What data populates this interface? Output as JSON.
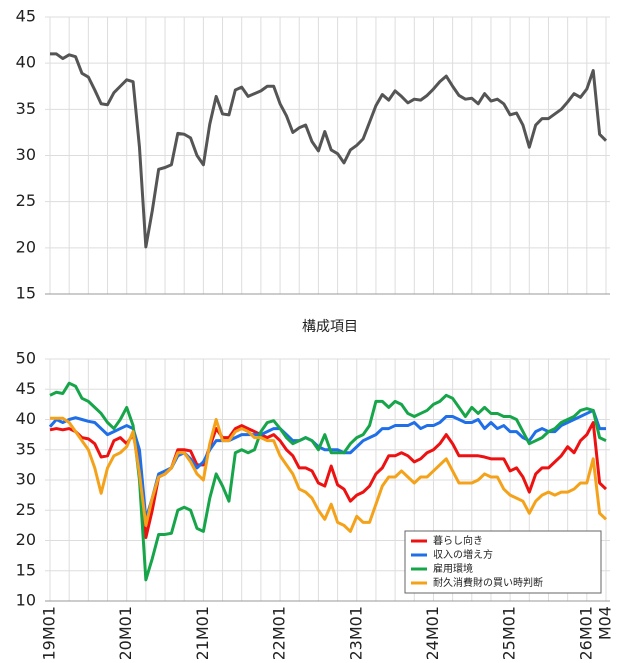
{
  "chart_data": [
    {
      "type": "line",
      "ylim": [
        15,
        45
      ],
      "yticks": [
        15,
        20,
        25,
        30,
        35,
        40,
        45
      ],
      "grid": true,
      "series": [
        {
          "color": "#555555",
          "values": [
            41.0,
            41.0,
            40.5,
            40.9,
            40.7,
            38.9,
            38.5,
            37.1,
            35.6,
            35.5,
            36.8,
            37.5,
            38.2,
            38.0,
            30.9,
            20.1,
            24.0,
            28.5,
            28.7,
            29.0,
            32.4,
            32.3,
            31.9,
            30.0,
            29.0,
            33.4,
            36.4,
            34.5,
            34.4,
            37.1,
            37.4,
            36.4,
            36.7,
            37.0,
            37.5,
            37.5,
            35.6,
            34.3,
            32.5,
            33.0,
            33.3,
            31.5,
            30.5,
            32.6,
            30.6,
            30.2,
            29.2,
            30.6,
            31.1,
            31.8,
            33.6,
            35.4,
            36.6,
            36.0,
            37.0,
            36.4,
            35.7,
            36.1,
            36.0,
            36.5,
            37.2,
            38.0,
            38.6,
            37.5,
            36.5,
            36.1,
            36.2,
            35.6,
            36.7,
            35.9,
            36.1,
            35.6,
            34.4,
            34.6,
            33.3,
            30.9,
            33.3,
            34.0,
            34.0,
            34.5,
            35.0,
            35.8,
            36.7,
            36.3,
            37.2,
            39.2,
            32.3,
            31.6
          ]
        }
      ]
    },
    {
      "type": "line",
      "title": "構成項目",
      "categories": [
        "19M01",
        null,
        null,
        null,
        null,
        null,
        null,
        null,
        null,
        null,
        null,
        null,
        "20M01",
        null,
        null,
        null,
        null,
        null,
        null,
        null,
        null,
        null,
        null,
        null,
        "21M01",
        null,
        null,
        null,
        null,
        null,
        null,
        null,
        null,
        null,
        null,
        null,
        "22M01",
        null,
        null,
        null,
        null,
        null,
        null,
        null,
        null,
        null,
        null,
        null,
        "23M01",
        null,
        null,
        null,
        null,
        null,
        null,
        null,
        null,
        null,
        null,
        null,
        "24M01",
        null,
        null,
        null,
        null,
        null,
        null,
        null,
        null,
        null,
        null,
        null,
        "25M01",
        null,
        null,
        null,
        null,
        null,
        null,
        null,
        null,
        null,
        null,
        null,
        "26M01",
        null,
        null,
        "M04"
      ],
      "ylim": [
        10,
        50
      ],
      "yticks": [
        10,
        15,
        20,
        25,
        30,
        35,
        40,
        45,
        50
      ],
      "grid": true,
      "legend": "lower right",
      "series": [
        {
          "name": "暮らし向き",
          "color": "#ee1111",
          "values": [
            38.3,
            38.5,
            38.3,
            38.5,
            38,
            37,
            36.8,
            36,
            33.8,
            34,
            36.5,
            37,
            36,
            37.5,
            33,
            20.5,
            25,
            30.5,
            31,
            32,
            35,
            35,
            34.8,
            32.5,
            32.5,
            35.5,
            38.5,
            37,
            37,
            38.5,
            39,
            38.5,
            38,
            37.5,
            37,
            37.5,
            36.5,
            35,
            34,
            32,
            32,
            31.5,
            29.5,
            29,
            32.3,
            29.2,
            28.5,
            26.5,
            27.5,
            28,
            29,
            31,
            32,
            34,
            34,
            34.5,
            34,
            33,
            33.5,
            34.5,
            35,
            36,
            37.5,
            36,
            34,
            34,
            34,
            34,
            33.8,
            33.5,
            33.5,
            33.5,
            31.5,
            32,
            30.5,
            28,
            31,
            32,
            32,
            33,
            34,
            35.5,
            34.5,
            36.5,
            37.5,
            39.5,
            29.5,
            28.5
          ]
        },
        {
          "name": "収入の増え方",
          "color": "#1f6fe8",
          "values": [
            38.8,
            40,
            39.5,
            40,
            40.3,
            40,
            39.7,
            39.5,
            38.5,
            37.5,
            38,
            38.5,
            39,
            38.5,
            35,
            23.5,
            27,
            31,
            31.5,
            32,
            34,
            34.5,
            33.5,
            32,
            33,
            35,
            36.5,
            36.5,
            36.5,
            37,
            37.5,
            37.5,
            37.5,
            37.5,
            38,
            38.5,
            38.5,
            37.5,
            36.5,
            36.5,
            37,
            36.5,
            35.5,
            35,
            35,
            35,
            34.5,
            34.5,
            35.5,
            36.5,
            37,
            37.5,
            38.5,
            38.5,
            39,
            39,
            39,
            39.5,
            38.5,
            39,
            39,
            39.5,
            40.5,
            40.5,
            40,
            39.5,
            39.5,
            40,
            38.5,
            39.5,
            38.5,
            39,
            38,
            38,
            37,
            36.5,
            38,
            38.5,
            38,
            38,
            39,
            39.5,
            40,
            40.5,
            41,
            41.5,
            38.5,
            38.5
          ]
        },
        {
          "name": "雇用環境",
          "color": "#17a54a",
          "values": [
            44,
            44.5,
            44.3,
            46,
            45.5,
            43.5,
            43,
            42,
            41,
            39.5,
            38.5,
            40,
            42,
            39,
            30,
            13.5,
            17,
            21,
            21,
            21.2,
            25,
            25.5,
            25,
            22,
            21.5,
            27,
            31,
            29,
            26.5,
            34.5,
            35,
            34.5,
            35,
            38,
            39.5,
            39.8,
            38.5,
            37,
            36,
            36.5,
            37,
            36.5,
            35,
            37.5,
            34.5,
            34.5,
            34.5,
            36,
            37,
            37.5,
            39,
            43,
            43,
            42,
            43,
            42.5,
            41,
            40.5,
            41,
            41.5,
            42.5,
            43,
            44,
            43.5,
            42,
            40.5,
            42,
            41,
            42,
            41,
            41,
            40.5,
            40.5,
            40,
            38,
            36,
            36.5,
            37,
            38,
            38.5,
            39.5,
            40,
            40.5,
            41.5,
            41.8,
            41.5,
            37,
            36.5
          ]
        },
        {
          "name": "耐久消費財の買い時判断",
          "color": "#f5a21b",
          "values": [
            40.2,
            40.2,
            40.2,
            39.5,
            38,
            36.5,
            35,
            32,
            27.8,
            32,
            34,
            34.5,
            35.5,
            38,
            31,
            22.5,
            27,
            30.5,
            31,
            32,
            34.5,
            34.5,
            33,
            31,
            30,
            36,
            40,
            36.5,
            36.5,
            38,
            38.5,
            38,
            37,
            37,
            36.5,
            36.5,
            34,
            32.5,
            31,
            28.5,
            28,
            27,
            25,
            23.5,
            26,
            23,
            22.5,
            21.5,
            24,
            23,
            23,
            26,
            29,
            30.5,
            30.5,
            31.5,
            30.5,
            29.5,
            30.5,
            30.5,
            31.5,
            32.5,
            33.5,
            31.5,
            29.5,
            29.5,
            29.5,
            30,
            31,
            30.5,
            30.5,
            28.5,
            27.5,
            27,
            26.5,
            24.5,
            26.5,
            27.5,
            28,
            27.5,
            28,
            28,
            28.5,
            29.5,
            29.5,
            33.5,
            24.5,
            23.5
          ]
        }
      ]
    }
  ]
}
